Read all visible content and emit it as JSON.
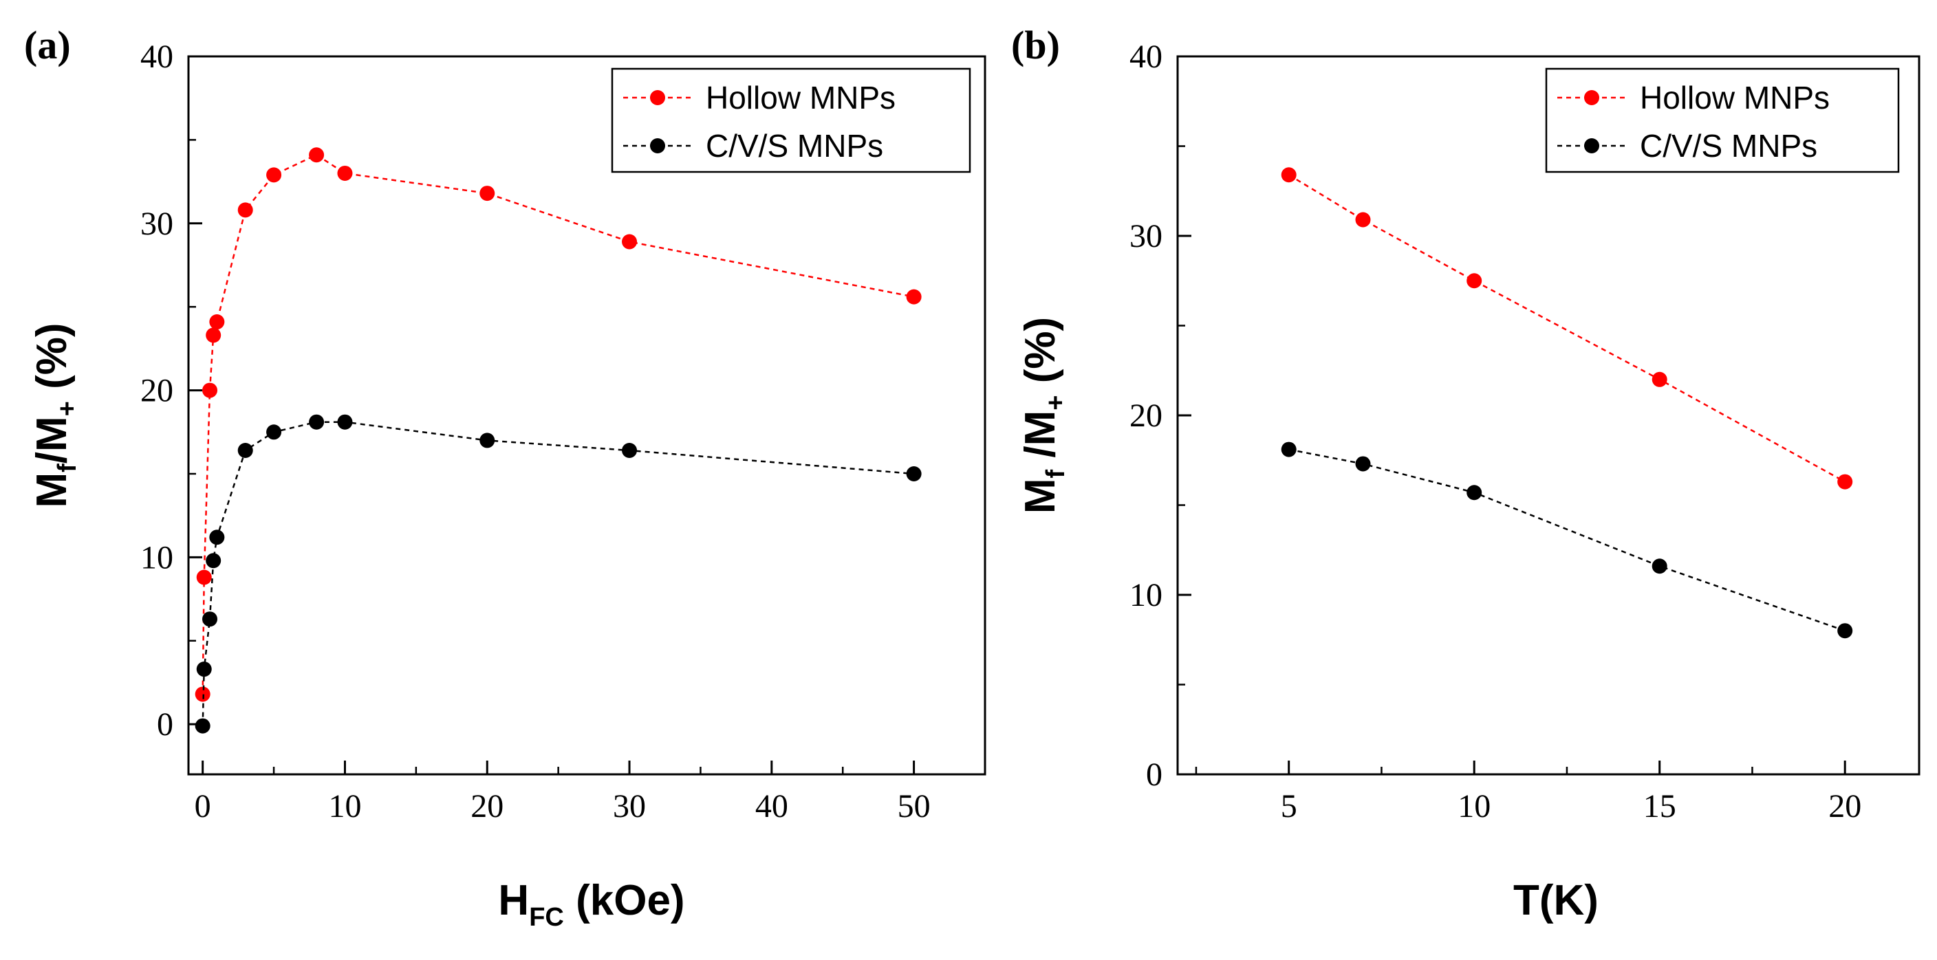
{
  "figure": {
    "panels": [
      {
        "panel_label": "(a)",
        "ylabel": {
          "base": "M",
          "sub1": "f",
          "mid": "/M",
          "sub2": "+",
          "tail": " (%)"
        },
        "xlabel": {
          "base": "H",
          "sub": "FC",
          "tail": " (kOe)"
        },
        "legend_entries": [
          "Hollow MNPs",
          "C/V/S MNPs"
        ]
      },
      {
        "panel_label": "(b)",
        "ylabel": {
          "base": "M",
          "sub1": "f",
          "mid": " /M",
          "sub2": "+",
          "tail": " (%)"
        },
        "xlabel": {
          "base": "T(K)",
          "sub": "",
          "tail": ""
        },
        "legend_entries": [
          "Hollow MNPs",
          "C/V/S MNPs"
        ]
      }
    ]
  },
  "chart_data": [
    {
      "type": "line",
      "panel": "(a)",
      "xlim": [
        -1,
        55
      ],
      "ylim": [
        -3,
        40
      ],
      "xticks": [
        0,
        10,
        20,
        30,
        40,
        50
      ],
      "yticks": [
        0,
        10,
        20,
        30,
        40
      ],
      "xtick_labels": [
        "0",
        "10",
        "20",
        "30",
        "40",
        "50"
      ],
      "ytick_labels": [
        "0",
        "10",
        "20",
        "30",
        "40"
      ],
      "legend_position": "top-right",
      "grid": false,
      "series": [
        {
          "name": "Hollow MNPs",
          "color": "#ff0000",
          "x": [
            0,
            0.1,
            0.5,
            0.75,
            1,
            3,
            5,
            8,
            10,
            20,
            30,
            50
          ],
          "y": [
            1.8,
            8.8,
            20.0,
            23.3,
            24.1,
            30.8,
            32.9,
            34.1,
            33.0,
            31.8,
            28.9,
            25.6
          ]
        },
        {
          "name": "C/V/S MNPs",
          "color": "#000000",
          "x": [
            0,
            0.1,
            0.5,
            0.75,
            1,
            3,
            5,
            8,
            10,
            20,
            30,
            50
          ],
          "y": [
            -0.1,
            3.3,
            6.3,
            9.8,
            11.2,
            16.4,
            17.5,
            18.1,
            18.1,
            17.0,
            16.4,
            15.0
          ]
        }
      ]
    },
    {
      "type": "line",
      "panel": "(b)",
      "xlim": [
        2,
        22
      ],
      "ylim": [
        0,
        40
      ],
      "xticks": [
        5,
        10,
        15,
        20
      ],
      "yticks": [
        0,
        10,
        20,
        30,
        40
      ],
      "xtick_labels": [
        "5",
        "10",
        "15",
        "20"
      ],
      "ytick_labels": [
        "0",
        "10",
        "20",
        "30",
        "40"
      ],
      "legend_position": "top-right",
      "grid": false,
      "series": [
        {
          "name": "Hollow MNPs",
          "color": "#ff0000",
          "x": [
            5,
            7,
            10,
            15,
            20
          ],
          "y": [
            33.4,
            30.9,
            27.5,
            22.0,
            16.3
          ]
        },
        {
          "name": "C/V/S MNPs",
          "color": "#000000",
          "x": [
            5,
            7,
            10,
            15,
            20
          ],
          "y": [
            18.1,
            17.3,
            15.7,
            11.6,
            8.0
          ]
        }
      ]
    }
  ]
}
